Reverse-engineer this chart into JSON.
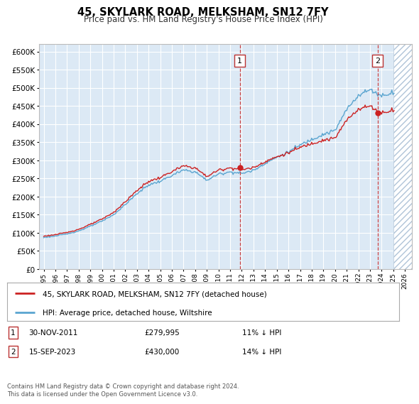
{
  "title": "45, SKYLARK ROAD, MELKSHAM, SN12 7FY",
  "subtitle": "Price paid vs. HM Land Registry's House Price Index (HPI)",
  "hpi_label": "HPI: Average price, detached house, Wiltshire",
  "property_label": "45, SKYLARK ROAD, MELKSHAM, SN12 7FY (detached house)",
  "transaction1_date": "30-NOV-2011",
  "transaction1_price": 279995,
  "transaction1_note": "11% ↓ HPI",
  "transaction2_date": "15-SEP-2023",
  "transaction2_price": 430000,
  "transaction2_note": "14% ↓ HPI",
  "footer": "Contains HM Land Registry data © Crown copyright and database right 2024.\nThis data is licensed under the Open Government Licence v3.0.",
  "ylim_min": 0,
  "ylim_max": 620000,
  "hpi_color": "#5aa5d0",
  "property_color": "#cc2222",
  "vline_color": "#cc3333",
  "background_color": "#dce9f5",
  "hatch_color": "#b0c4d8",
  "grid_color": "#ffffff",
  "border_color": "#bbbbbb"
}
